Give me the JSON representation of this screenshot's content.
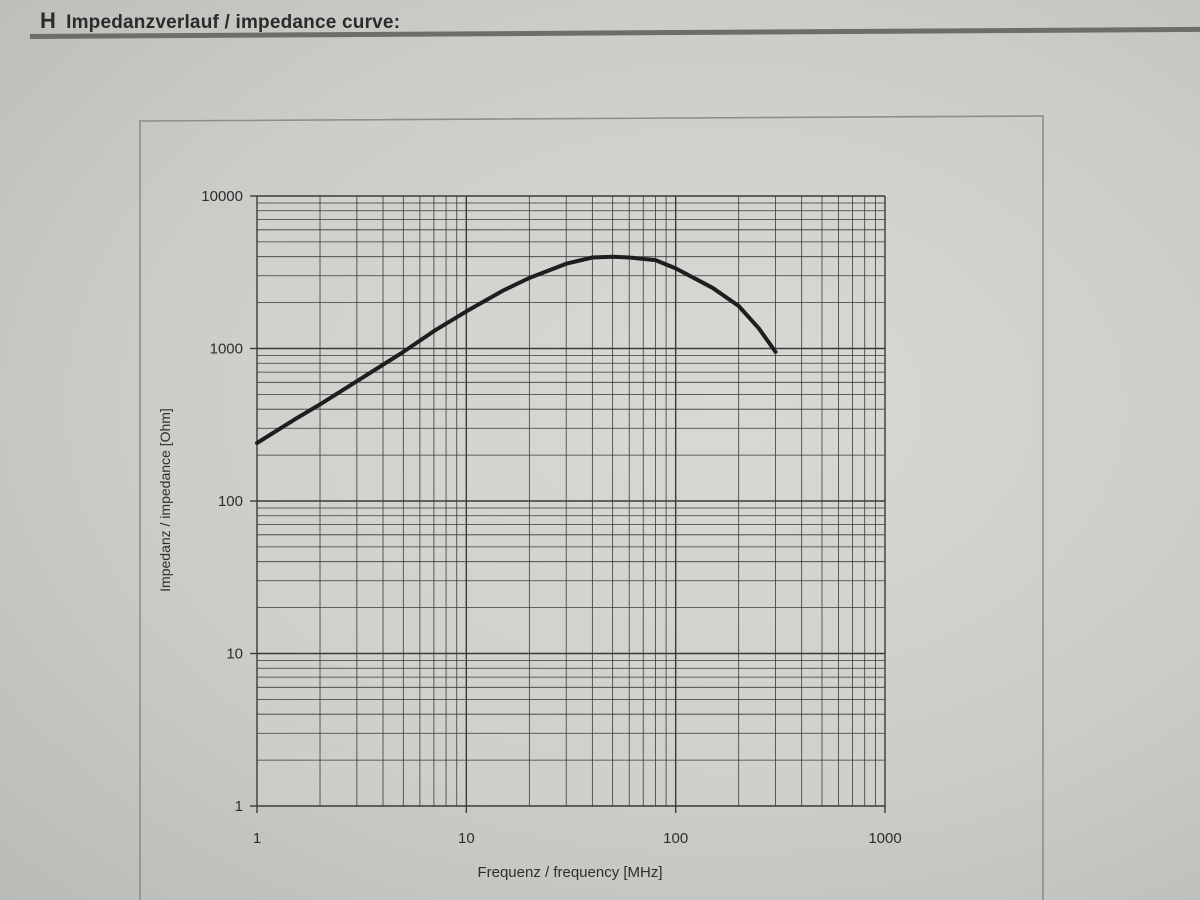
{
  "page": {
    "heading_letter": "H",
    "heading_text": "Impedanzverlauf / impedance curve:"
  },
  "chart_data": {
    "type": "line",
    "title": "",
    "xlabel": "Frequenz / frequency [MHz]",
    "ylabel": "Impedanz / impedance [Ohm]",
    "xscale": "log",
    "yscale": "log",
    "xlim": [
      1,
      1000
    ],
    "ylim": [
      1,
      10000
    ],
    "xticks": [
      1,
      10,
      100,
      1000
    ],
    "xtick_labels": [
      "1",
      "10",
      "100",
      "1000"
    ],
    "yticks": [
      1,
      10,
      100,
      1000,
      10000
    ],
    "ytick_labels": [
      "1",
      "10",
      "100",
      "1000",
      "10000"
    ],
    "grid": true,
    "legend": "none",
    "line_color": "#1e1e1e",
    "series": [
      {
        "x": [
          1,
          1.5,
          2,
          3,
          5,
          7,
          10,
          15,
          20,
          30,
          40,
          50,
          60,
          80,
          100,
          150,
          200,
          250,
          300
        ],
        "y": [
          240,
          340,
          430,
          610,
          950,
          1300,
          1750,
          2400,
          2900,
          3600,
          3950,
          4000,
          3950,
          3800,
          3350,
          2500,
          1900,
          1350,
          950
        ]
      }
    ]
  }
}
